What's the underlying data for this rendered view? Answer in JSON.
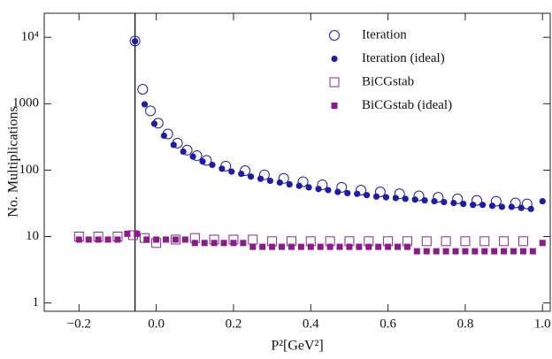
{
  "chart_data": {
    "type": "scatter",
    "xlabel": "P²[GeV²]",
    "ylabel": "No. Multiplications",
    "xlim": [
      -0.29,
      1.02
    ],
    "ylim": [
      0.75,
      23000
    ],
    "log_y": true,
    "xticks": [
      {
        "value": -0.2,
        "label": "−0.2"
      },
      {
        "value": 0,
        "label": "0.0"
      },
      {
        "value": 0.2,
        "label": "0.2"
      },
      {
        "value": 0.4,
        "label": "0.4"
      },
      {
        "value": 0.6,
        "label": "0.6"
      },
      {
        "value": 0.8,
        "label": "0.8"
      },
      {
        "value": 1,
        "label": "1.0"
      }
    ],
    "yticks": [
      1,
      10,
      100,
      1000,
      {
        "value": 10000,
        "label": "10⁴"
      }
    ],
    "vline": -0.055,
    "legend": "upper right",
    "series": [
      {
        "name": "Iteration",
        "color": "#1c1ca8",
        "marker": "circle-open",
        "x": [
          -0.055,
          -0.035,
          -0.015,
          0.005,
          0.03,
          0.055,
          0.08,
          0.105,
          0.13,
          0.18,
          0.23,
          0.28,
          0.33,
          0.38,
          0.43,
          0.48,
          0.53,
          0.58,
          0.63,
          0.68,
          0.73,
          0.78,
          0.83,
          0.88,
          0.93,
          0.96
        ],
        "values": [
          8800,
          1650,
          780,
          510,
          350,
          255,
          200,
          165,
          140,
          115,
          98,
          85,
          75,
          67,
          60,
          55,
          50,
          47,
          44,
          41,
          39,
          37,
          35,
          34,
          32,
          31
        ]
      },
      {
        "name": "Iteration (ideal)",
        "color": "#1c1ca8",
        "marker": "circle",
        "x": [
          -0.055,
          -0.03,
          -0.005,
          0.02,
          0.045,
          0.07,
          0.095,
          0.12,
          0.145,
          0.17,
          0.195,
          0.22,
          0.245,
          0.27,
          0.295,
          0.32,
          0.345,
          0.37,
          0.395,
          0.42,
          0.445,
          0.47,
          0.495,
          0.52,
          0.545,
          0.57,
          0.595,
          0.62,
          0.645,
          0.67,
          0.695,
          0.72,
          0.745,
          0.77,
          0.795,
          0.82,
          0.845,
          0.87,
          0.895,
          0.92,
          0.945,
          0.97,
          1.0
        ],
        "values": [
          8700,
          980,
          500,
          330,
          240,
          190,
          160,
          135,
          120,
          105,
          95,
          88,
          80,
          74,
          69,
          65,
          61,
          58,
          55,
          52,
          50,
          47,
          45,
          44,
          42,
          40,
          39,
          38,
          37,
          36,
          35,
          34,
          33,
          32,
          31,
          30,
          30,
          29,
          28,
          28,
          27,
          26,
          34
        ]
      },
      {
        "name": "BiCGstab",
        "color": "#8b2a8b",
        "marker": "square-open",
        "x": [
          -0.2,
          -0.15,
          -0.1,
          -0.06,
          -0.03,
          0.0,
          0.05,
          0.1,
          0.15,
          0.2,
          0.25,
          0.3,
          0.35,
          0.4,
          0.45,
          0.5,
          0.55,
          0.6,
          0.65,
          0.7,
          0.75,
          0.8,
          0.85,
          0.9,
          0.95
        ],
        "values": [
          10,
          10,
          10,
          10.5,
          9.5,
          8,
          9,
          9.5,
          9,
          9,
          9,
          8.5,
          8.5,
          8.5,
          8.5,
          8.5,
          8.5,
          8.5,
          8.5,
          8.5,
          8.5,
          8.5,
          8.5,
          8.5,
          8.5
        ]
      },
      {
        "name": "BiCGstab (ideal)",
        "color": "#8b1a8b",
        "marker": "square",
        "x": [
          -0.2,
          -0.175,
          -0.15,
          -0.125,
          -0.1,
          -0.075,
          -0.05,
          -0.025,
          0.0,
          0.025,
          0.05,
          0.075,
          0.1,
          0.125,
          0.15,
          0.175,
          0.2,
          0.225,
          0.25,
          0.275,
          0.3,
          0.325,
          0.35,
          0.375,
          0.4,
          0.425,
          0.45,
          0.475,
          0.5,
          0.525,
          0.55,
          0.575,
          0.6,
          0.625,
          0.65,
          0.675,
          0.7,
          0.725,
          0.75,
          0.775,
          0.8,
          0.825,
          0.85,
          0.875,
          0.9,
          0.925,
          0.95,
          0.975,
          1.0
        ],
        "values": [
          9,
          9,
          9,
          9,
          9,
          11,
          11,
          9,
          9,
          9,
          9,
          9,
          8,
          8,
          8,
          8,
          8,
          8,
          7,
          7,
          7,
          7,
          7,
          7,
          7,
          7,
          7,
          7,
          7,
          7,
          7,
          7,
          7,
          7,
          7,
          6,
          6,
          6,
          6,
          6,
          6,
          6,
          6,
          6,
          6,
          6,
          6,
          6,
          8
        ]
      }
    ]
  }
}
